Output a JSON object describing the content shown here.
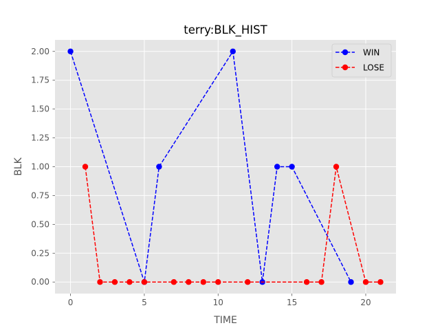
{
  "chart_data": {
    "type": "line",
    "title": "terry:BLK_HIST",
    "xlabel": "TIME",
    "ylabel": "BLK",
    "xlim": [
      -1.05,
      22.05
    ],
    "ylim": [
      -0.1,
      2.1
    ],
    "xticks": [
      0,
      5,
      10,
      15,
      20
    ],
    "yticks": [
      0.0,
      0.25,
      0.5,
      0.75,
      1.0,
      1.25,
      1.5,
      1.75,
      2.0
    ],
    "ytick_labels": [
      "0.00",
      "0.25",
      "0.50",
      "0.75",
      "1.00",
      "1.25",
      "1.50",
      "1.75",
      "2.00"
    ],
    "grid": true,
    "legend_position": "top-right",
    "background": "#e5e5e5",
    "series": [
      {
        "name": "WIN",
        "color": "#0000ff",
        "line_style": "dashed",
        "marker": "circle",
        "x": [
          0,
          5,
          6,
          11,
          13,
          14,
          15,
          19
        ],
        "y": [
          2,
          0,
          1,
          2,
          0,
          1,
          1,
          0
        ]
      },
      {
        "name": "LOSE",
        "color": "#ff0000",
        "line_style": "dashed",
        "marker": "circle",
        "x": [
          1,
          2,
          3,
          4,
          5,
          7,
          8,
          9,
          10,
          12,
          16,
          17,
          18,
          20,
          21
        ],
        "y": [
          1,
          0,
          0,
          0,
          0,
          0,
          0,
          0,
          0,
          0,
          0,
          0,
          1,
          0,
          0
        ]
      }
    ]
  }
}
